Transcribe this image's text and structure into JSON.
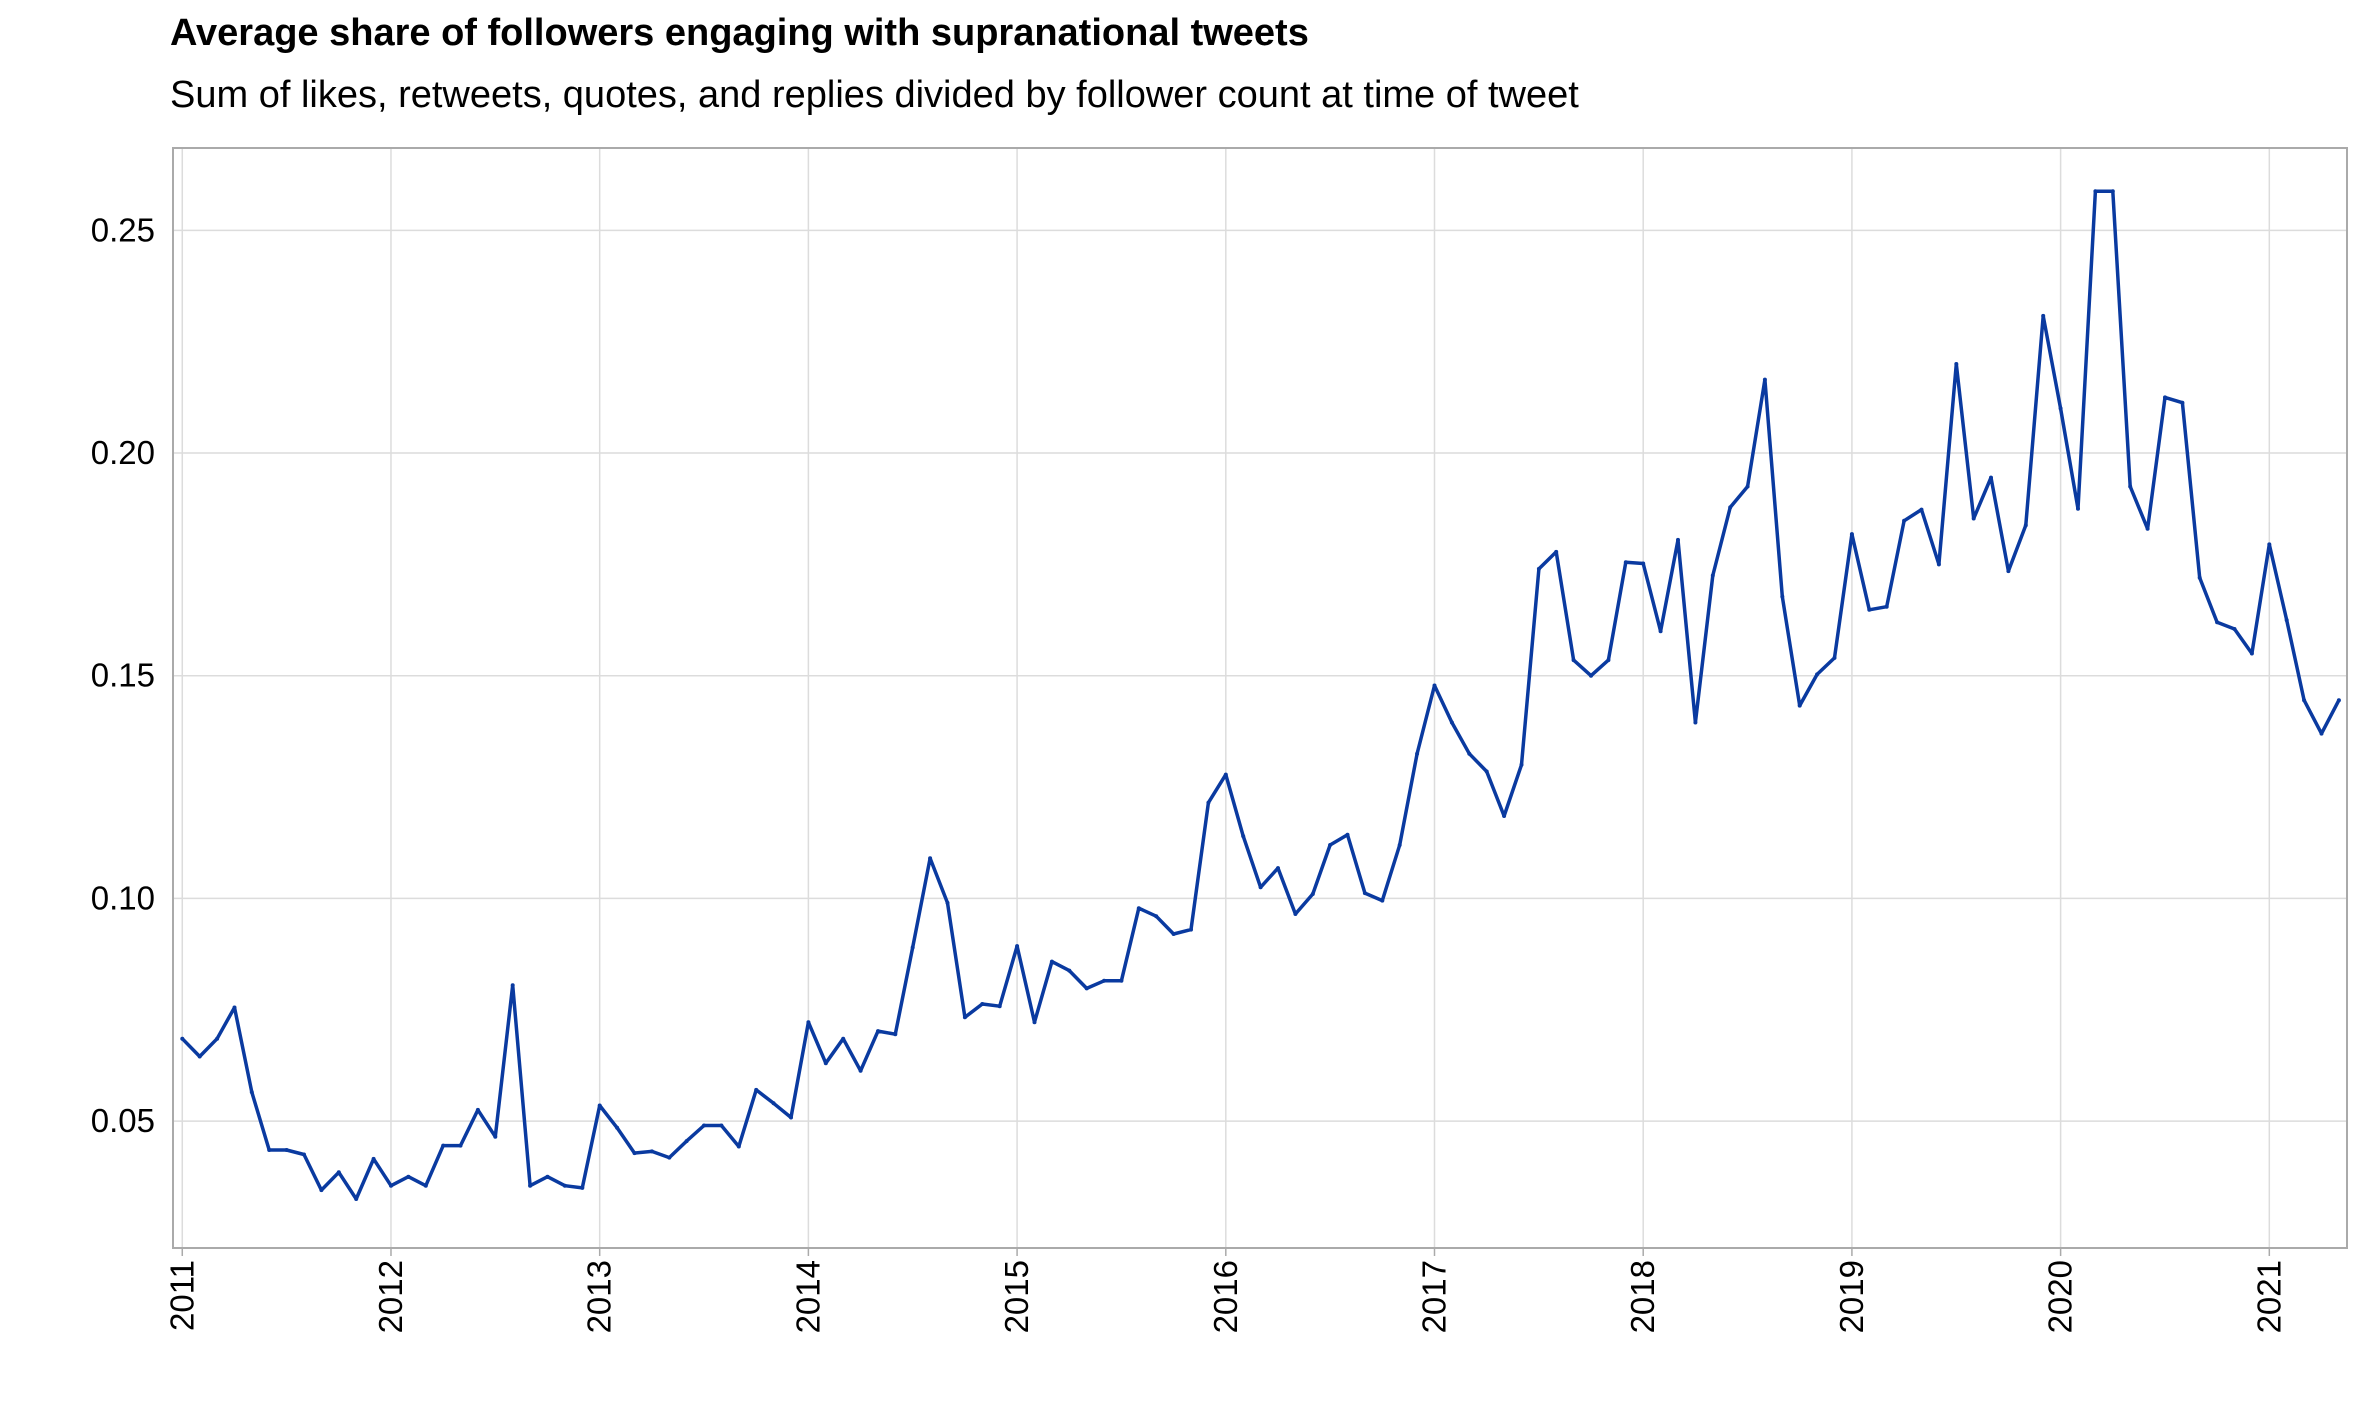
{
  "chart_data": {
    "type": "line",
    "title": "Average share of followers engaging with supranational tweets",
    "subtitle": "Sum of likes, retweets, quotes, and replies divided by follower count at time of tweet",
    "xlabel": "",
    "ylabel": "",
    "x_ticks": [
      "2011",
      "2012",
      "2013",
      "2014",
      "2015",
      "2016",
      "2017",
      "2018",
      "2019",
      "2020",
      "2021"
    ],
    "y_ticks": [
      "0.05",
      "0.10",
      "0.15",
      "0.20",
      "0.25"
    ],
    "y_tick_values": [
      0.05,
      0.1,
      0.15,
      0.2,
      0.25
    ],
    "xlim": [
      "2010-12-15",
      "2021-05-15"
    ],
    "ylim": [
      0.0215,
      0.2685
    ],
    "grid": true,
    "line_color": "#0a3aa0",
    "series": [
      {
        "x": [
          "2011-01",
          "2011-02",
          "2011-03",
          "2011-04",
          "2011-05",
          "2011-06",
          "2011-07",
          "2011-08",
          "2011-09",
          "2011-10",
          "2011-11",
          "2011-12",
          "2012-01",
          "2012-02",
          "2012-03",
          "2012-04",
          "2012-05",
          "2012-06",
          "2012-07",
          "2012-08",
          "2012-09",
          "2012-10",
          "2012-11",
          "2012-12",
          "2013-01",
          "2013-02",
          "2013-03",
          "2013-04",
          "2013-05",
          "2013-06",
          "2013-07",
          "2013-08",
          "2013-09",
          "2013-10",
          "2013-11",
          "2013-12",
          "2014-01",
          "2014-02",
          "2014-03",
          "2014-04",
          "2014-05",
          "2014-06",
          "2014-07",
          "2014-08",
          "2014-09",
          "2014-10",
          "2014-11",
          "2014-12",
          "2015-01",
          "2015-02",
          "2015-03",
          "2015-04",
          "2015-05",
          "2015-06",
          "2015-07",
          "2015-08",
          "2015-09",
          "2015-10",
          "2015-11",
          "2015-12",
          "2016-01",
          "2016-02",
          "2016-03",
          "2016-04",
          "2016-05",
          "2016-06",
          "2016-07",
          "2016-08",
          "2016-09",
          "2016-10",
          "2016-11",
          "2016-12",
          "2017-01",
          "2017-02",
          "2017-03",
          "2017-04",
          "2017-05",
          "2017-06",
          "2017-07",
          "2017-08",
          "2017-09",
          "2017-10",
          "2017-11",
          "2017-12",
          "2018-01",
          "2018-02",
          "2018-03",
          "2018-04",
          "2018-05",
          "2018-06",
          "2018-07",
          "2018-08",
          "2018-09",
          "2018-10",
          "2018-11",
          "2018-12",
          "2019-01",
          "2019-02",
          "2019-03",
          "2019-04",
          "2019-05",
          "2019-06",
          "2019-07",
          "2019-08",
          "2019-09",
          "2019-10",
          "2019-11",
          "2019-12",
          "2020-01",
          "2020-02",
          "2020-03",
          "2020-04",
          "2020-05",
          "2020-06",
          "2020-07",
          "2020-08",
          "2020-09",
          "2020-10",
          "2020-11",
          "2020-12",
          "2021-01",
          "2021-02",
          "2021-03",
          "2021-04",
          "2021-05"
        ],
        "y": [
          0.0685,
          0.0645,
          0.0685,
          0.0755,
          0.0565,
          0.0435,
          0.0435,
          0.0425,
          0.0345,
          0.0385,
          0.0325,
          0.0415,
          0.0355,
          0.0375,
          0.0355,
          0.0445,
          0.0445,
          0.0525,
          0.0465,
          0.0805,
          0.0355,
          0.0375,
          0.0355,
          0.035,
          0.0535,
          0.0485,
          0.0428,
          0.0432,
          0.0418,
          0.0455,
          0.049,
          0.049,
          0.0443,
          0.057,
          0.054,
          0.0508,
          0.0722,
          0.063,
          0.0685,
          0.0613,
          0.0702,
          0.0695,
          0.089,
          0.109,
          0.099,
          0.0733,
          0.0763,
          0.0758,
          0.0893,
          0.0722,
          0.0858,
          0.0838,
          0.0798,
          0.0815,
          0.0815,
          0.0978,
          0.096,
          0.092,
          0.093,
          0.1215,
          0.1278,
          0.114,
          0.1025,
          0.1068,
          0.0965,
          0.101,
          0.112,
          0.1143,
          0.1012,
          0.0995,
          0.112,
          0.1325,
          0.1478,
          0.1395,
          0.1325,
          0.1285,
          0.1185,
          0.13,
          0.174,
          0.1778,
          0.1535,
          0.15,
          0.1535,
          0.1755,
          0.1752,
          0.16,
          0.1805,
          0.1395,
          0.1725,
          0.1878,
          0.1925,
          0.2165,
          0.1678,
          0.1433,
          0.1503,
          0.154,
          0.1818,
          0.1648,
          0.1655,
          0.1848,
          0.1873,
          0.175,
          0.22,
          0.1853,
          0.1945,
          0.1735,
          0.1838,
          0.2308,
          0.21,
          0.1875,
          0.2588,
          0.2588,
          0.1925,
          0.183,
          0.2125,
          0.2113,
          0.172,
          0.162,
          0.1605,
          0.155,
          0.1795,
          0.1625,
          0.1445,
          0.137,
          0.1445
        ]
      }
    ]
  },
  "axes": {
    "frame_color": "#aaaaaa",
    "grid_color": "#dcdcdc"
  }
}
